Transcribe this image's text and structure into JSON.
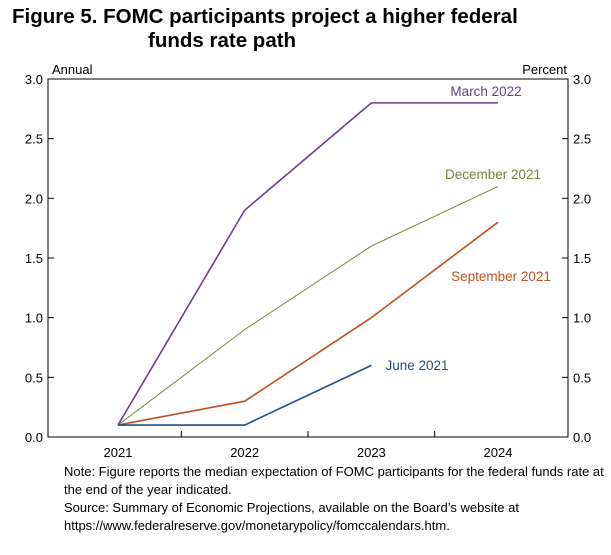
{
  "title_line1": "Figure 5. FOMC participants project a higher federal",
  "title_line2": "funds rate path",
  "chart_data": {
    "type": "line",
    "x": [
      "2021",
      "2022",
      "2023",
      "2024"
    ],
    "ylim": [
      0,
      3
    ],
    "y_ticks": [
      "0.0",
      "0.5",
      "1.0",
      "1.5",
      "2.0",
      "2.5",
      "3.0"
    ],
    "left_axis_label": "Annual",
    "right_axis_label": "Percent",
    "grid": false,
    "series": [
      {
        "name": "March 2022",
        "color": "#6b3f86",
        "values": [
          0.1,
          1.9,
          2.8,
          2.8
        ]
      },
      {
        "name": "December 2021",
        "color": "#6f8a34",
        "values": [
          0.1,
          0.9,
          1.6,
          2.1
        ]
      },
      {
        "name": "September 2021",
        "color": "#c0501f",
        "values": [
          0.1,
          0.3,
          1.0,
          1.8
        ]
      },
      {
        "name": "June 2021",
        "color": "#1d4f86",
        "values": [
          0.1,
          0.1,
          0.6,
          null
        ]
      }
    ]
  },
  "note": "Note: Figure reports the median expectation of FOMC participants for the federal funds rate at the end of the year indicated.",
  "source": "Source: Summary of Economic Projections, available on the Board’s website at https://www.federalreserve.gov/monetarypolicy/fomccalendars.htm."
}
